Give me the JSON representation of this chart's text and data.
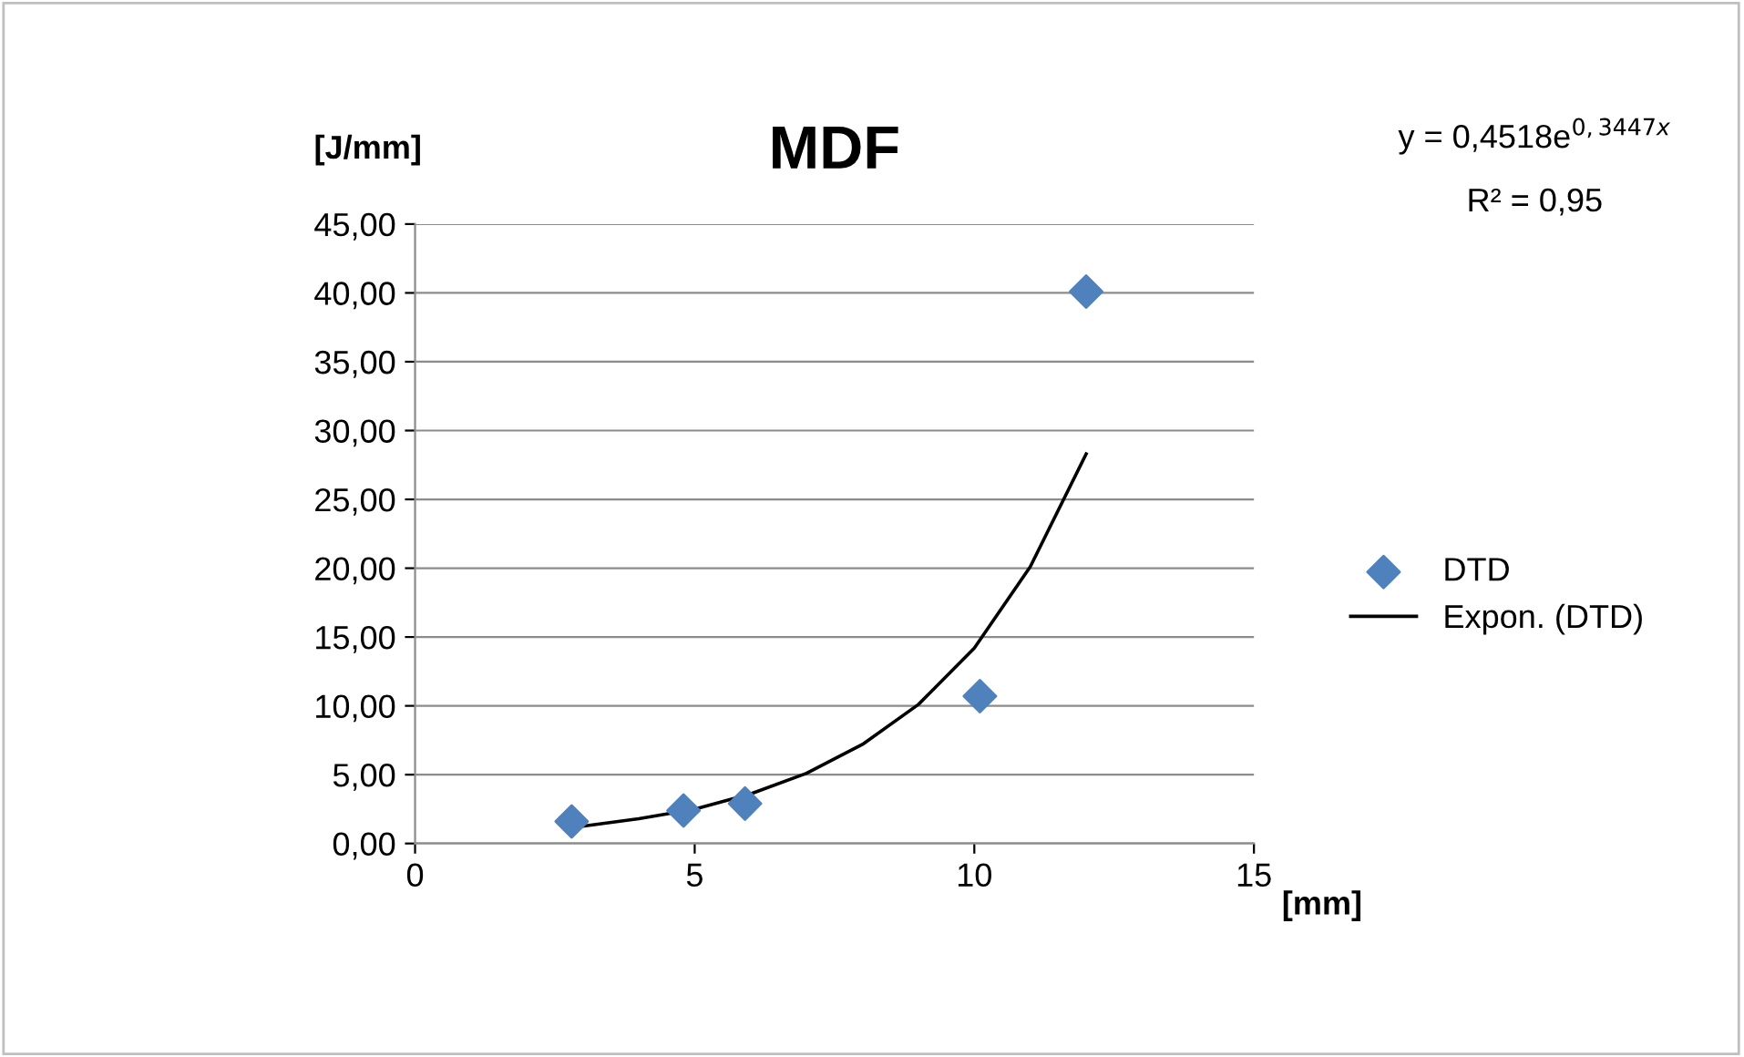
{
  "chart_data": {
    "type": "scatter",
    "title": "MDF",
    "xlabel": "[mm]",
    "ylabel": "[J/mm]",
    "annotations": [
      "y = 0,4518e$^{0,3447x}$",
      "R² = 0,95"
    ],
    "series": [
      {
        "name": "DTD",
        "color": "#4f81bd",
        "marker": "diamond",
        "x": [
          2.8,
          4.8,
          5.9,
          10.1,
          12.0
        ],
        "values": [
          1.6,
          2.4,
          2.9,
          10.7,
          40.1
        ]
      },
      {
        "name": "Expon. (DTD)",
        "type": "line",
        "color": "#000000",
        "marker": "none",
        "line_style": "solid",
        "x": [
          2.9,
          4,
          5,
          6,
          7,
          8,
          9,
          10,
          11,
          12
        ],
        "values": [
          1.2,
          1.8,
          2.5,
          3.6,
          5.1,
          7.2,
          10.1,
          14.2,
          20.1,
          28.3
        ]
      }
    ],
    "xlim": [
      0,
      15
    ],
    "xticks": [
      0,
      5,
      10,
      15
    ],
    "ylim": [
      0,
      45
    ],
    "yticks": [
      {
        "value": 0,
        "label": "0,00"
      },
      {
        "value": 5,
        "label": "5,00"
      },
      {
        "value": 10,
        "label": "10,00"
      },
      {
        "value": 15,
        "label": "15,00"
      },
      {
        "value": 20,
        "label": "20,00"
      },
      {
        "value": 25,
        "label": "25,00"
      },
      {
        "value": 30,
        "label": "30,00"
      },
      {
        "value": 35,
        "label": "35,00"
      },
      {
        "value": 40,
        "label": "40,00"
      },
      {
        "value": 45,
        "label": "45,00"
      }
    ],
    "grid": "y",
    "legend": "right"
  }
}
